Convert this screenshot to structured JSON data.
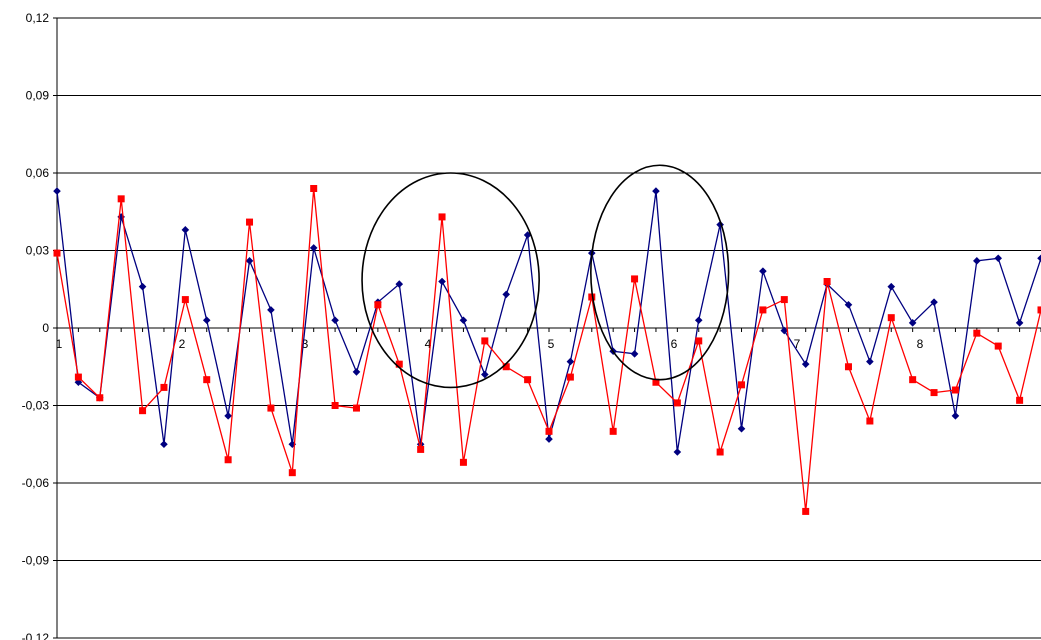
{
  "chart_data": {
    "type": "line",
    "title": "",
    "xlabel": "",
    "ylabel": "",
    "ylim": [
      -0.12,
      0.12
    ],
    "y_ticks": [
      "0,12",
      "0,09",
      "0,06",
      "0,03",
      "0",
      "-0,03",
      "-0,06",
      "-0,09",
      "-0,12"
    ],
    "y_tick_values": [
      0.12,
      0.09,
      0.06,
      0.03,
      0,
      -0.03,
      -0.06,
      -0.09,
      -0.12
    ],
    "x_tick_labels": [
      "1",
      "2",
      "3",
      "4",
      "5",
      "6",
      "7",
      "8"
    ],
    "x_tick_values": [
      1,
      2,
      3,
      4,
      5,
      6,
      7,
      8
    ],
    "xlim": [
      1,
      9
    ],
    "grid": "horizontal",
    "legend": "none",
    "colors": {
      "series_blue": "#000080",
      "series_red": "#ff0000",
      "grid": "#000000",
      "annotation": "#000000"
    },
    "series": [
      {
        "color": "#000080",
        "marker": "diamond",
        "values": [
          0.053,
          -0.021,
          -0.027,
          0.043,
          0.016,
          -0.045,
          0.038,
          0.003,
          -0.034,
          0.026,
          0.007,
          -0.045,
          0.031,
          0.003,
          -0.017,
          0.01,
          0.017,
          -0.045,
          0.018,
          0.003,
          -0.018,
          0.013,
          0.036,
          -0.043,
          -0.013,
          0.029,
          -0.009,
          -0.01,
          0.053,
          -0.048,
          0.003,
          0.04,
          -0.039,
          0.022,
          -0.001,
          -0.014,
          0.017,
          0.009,
          -0.013,
          0.016,
          0.002,
          0.01,
          -0.034,
          0.026,
          0.027,
          0.002,
          0.027
        ]
      },
      {
        "color": "#ff0000",
        "marker": "square",
        "values": [
          0.029,
          -0.019,
          -0.027,
          0.05,
          -0.032,
          -0.023,
          0.011,
          -0.02,
          -0.051,
          0.041,
          -0.031,
          -0.056,
          0.054,
          -0.03,
          -0.031,
          0.009,
          -0.014,
          -0.047,
          0.043,
          -0.052,
          -0.005,
          -0.015,
          -0.02,
          -0.04,
          -0.019,
          0.012,
          -0.04,
          0.019,
          -0.021,
          -0.029,
          -0.005,
          -0.048,
          -0.022,
          0.007,
          0.011,
          -0.071,
          0.018,
          -0.015,
          -0.036,
          0.004,
          -0.02,
          -0.025,
          -0.024,
          -0.002,
          -0.007,
          -0.028,
          0.007
        ]
      }
    ],
    "annotations": [
      {
        "shape": "ellipse",
        "center_x": 4.2,
        "center_y": 0.0185,
        "rx": 0.72,
        "ry": 0.0415
      },
      {
        "shape": "ellipse",
        "center_x": 5.9,
        "center_y": 0.0215,
        "rx": 0.56,
        "ry": 0.0415
      }
    ]
  }
}
